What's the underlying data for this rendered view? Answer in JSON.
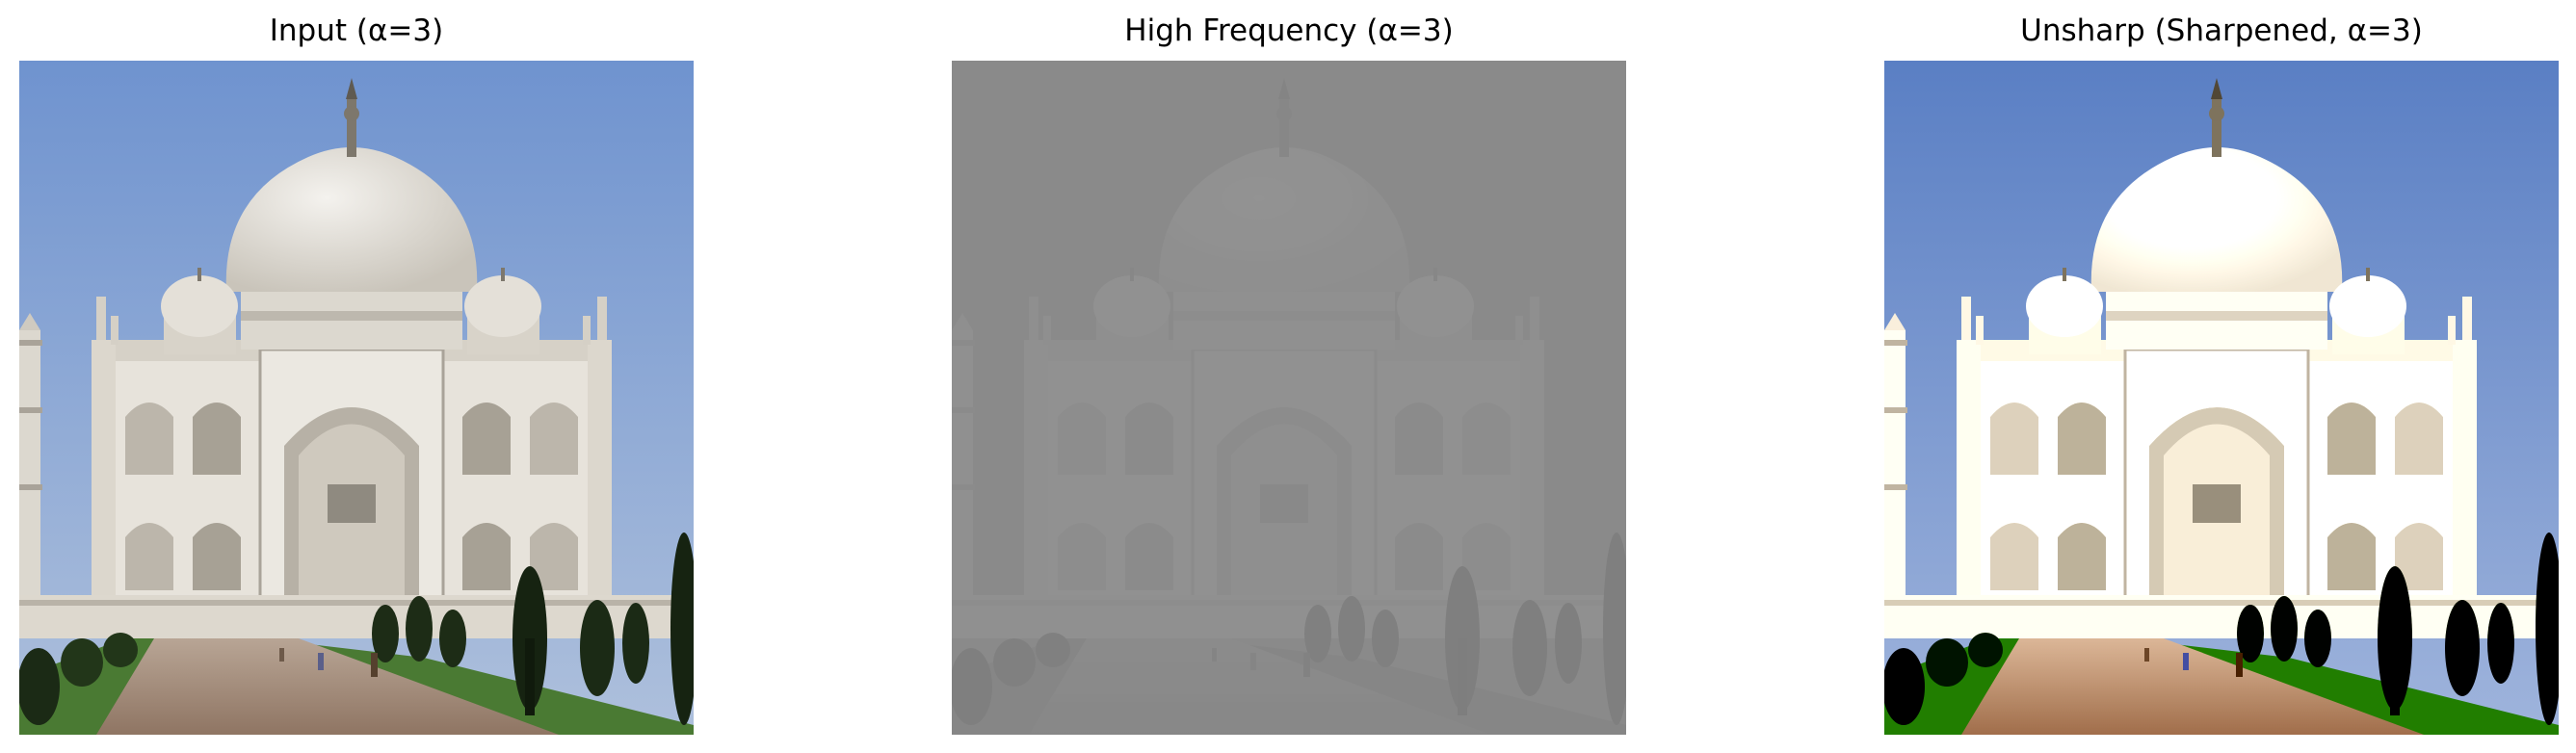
{
  "panels": [
    {
      "title": "Input (α=3)",
      "image": "taj-mahal-photo",
      "variant": "input"
    },
    {
      "title": "High Frequency (α=3)",
      "image": "taj-mahal-high-frequency",
      "variant": "high-frequency"
    },
    {
      "title": "Unsharp (Sharpened, α=3)",
      "image": "taj-mahal-sharpened",
      "variant": "sharpened"
    }
  ],
  "colors": {
    "sky_top": "#6f93cf",
    "sky_bottom": "#a9bddb",
    "marble": "#e9e6df",
    "marble_shadow": "#bdb8ae",
    "path": "#a68e7c",
    "grass": "#3f6b2a",
    "trees": "#1a2a14",
    "gray": "#8a8a8a"
  }
}
